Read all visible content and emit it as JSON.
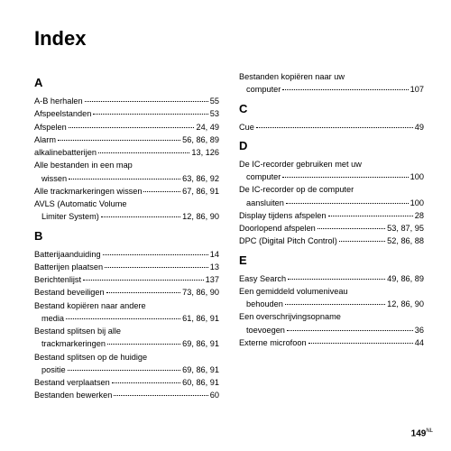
{
  "title": "Index",
  "page_number": "149",
  "page_suffix": "NL",
  "left": {
    "sections": [
      {
        "letter": "A",
        "entries": [
          {
            "label": "A-B herhalen",
            "pages": "55"
          },
          {
            "label": "Afspeelstanden",
            "pages": "53"
          },
          {
            "label": "Afspelen",
            "pages": "24, 49"
          },
          {
            "label": "Alarm",
            "pages": "56, 86, 89"
          },
          {
            "label": "alkalinebatterijen",
            "pages": "13, 126"
          },
          {
            "multi": true,
            "line1": "Alle bestanden in een map",
            "line2_label": "wissen",
            "pages": "63, 86, 92"
          },
          {
            "label": "Alle trackmarkeringen wissen",
            "pages": "67, 86, 91"
          },
          {
            "multi": true,
            "line1": "AVLS (Automatic Volume",
            "line2_label": "Limiter System)",
            "pages": "12, 86, 90"
          }
        ]
      },
      {
        "letter": "B",
        "entries": [
          {
            "label": "Batterijaanduiding",
            "pages": "14"
          },
          {
            "label": "Batterijen plaatsen",
            "pages": "13"
          },
          {
            "label": "Berichtenlijst",
            "pages": "137"
          },
          {
            "label": "Bestand beveiligen",
            "pages": "73, 86, 90"
          },
          {
            "multi": true,
            "line1": "Bestand kopiëren naar andere",
            "line2_label": "media",
            "pages": "61, 86, 91"
          },
          {
            "multi": true,
            "line1": "Bestand splitsen bij alle",
            "line2_label": "trackmarkeringen",
            "pages": "69, 86, 91"
          },
          {
            "multi": true,
            "line1": "Bestand splitsen op de huidige",
            "line2_label": "positie",
            "pages": "69, 86, 91"
          },
          {
            "label": "Bestand verplaatsen",
            "pages": "60, 86, 91"
          },
          {
            "label": "Bestanden bewerken",
            "pages": "60"
          }
        ]
      }
    ]
  },
  "right": {
    "sections": [
      {
        "letter": "",
        "entries": [
          {
            "multi": true,
            "line1": "Bestanden kopiëren naar uw",
            "line2_label": "computer",
            "pages": "107"
          }
        ]
      },
      {
        "letter": "C",
        "entries": [
          {
            "label": "Cue",
            "pages": "49"
          }
        ]
      },
      {
        "letter": "D",
        "entries": [
          {
            "multi": true,
            "line1": "De IC-recorder gebruiken met uw",
            "line2_label": "computer",
            "pages": "100"
          },
          {
            "multi": true,
            "line1": "De IC-recorder op de computer",
            "line2_label": "aansluiten",
            "pages": "100"
          },
          {
            "label": "Display tijdens afspelen",
            "pages": "28"
          },
          {
            "label": "Doorlopend afspelen",
            "pages": "53, 87, 95"
          },
          {
            "label": "DPC (Digital Pitch Control)",
            "pages": "52, 86, 88"
          }
        ]
      },
      {
        "letter": "E",
        "entries": [
          {
            "label": "Easy Search",
            "pages": "49, 86, 89"
          },
          {
            "multi": true,
            "line1": "Een gemiddeld volumeniveau",
            "line2_label": "behouden",
            "pages": "12, 86, 90"
          },
          {
            "multi": true,
            "line1": "Een overschrijvingsopname",
            "line2_label": "toevoegen",
            "pages": "36"
          },
          {
            "label": "Externe microfoon",
            "pages": "44"
          }
        ]
      }
    ]
  }
}
